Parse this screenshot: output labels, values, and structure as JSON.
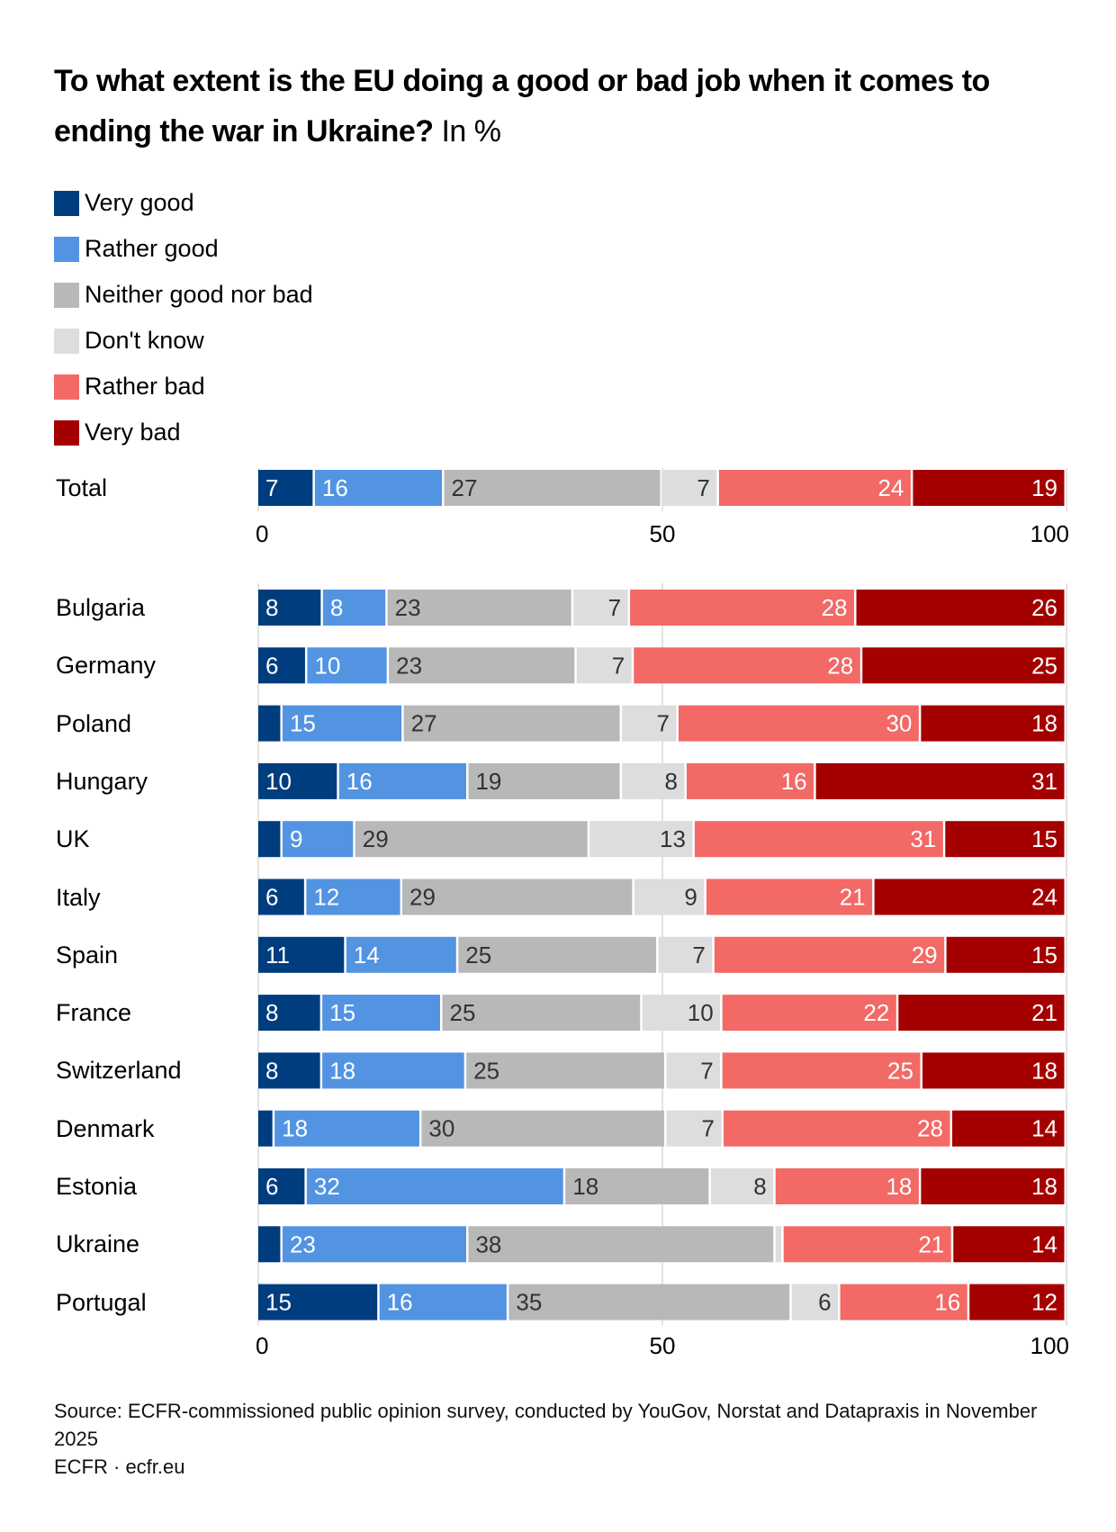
{
  "header": {
    "title": "To what extent is the EU doing a good or bad job when it comes to ending the war in Ukraine?",
    "unit": " In %"
  },
  "legend": [
    {
      "label": "Very good",
      "color": "#003d7f"
    },
    {
      "label": "Rather good",
      "color": "#5294e2"
    },
    {
      "label": "Neither good nor bad",
      "color": "#b8b8b8"
    },
    {
      "label": "Don't know",
      "color": "#dddddd"
    },
    {
      "label": "Rather bad",
      "color": "#f26966"
    },
    {
      "label": "Very bad",
      "color": "#a50000"
    }
  ],
  "footer": {
    "source": "Source: ECFR-commissioned public opinion survey, conducted by YouGov, Norstat and Datapraxis in November 2025",
    "credit": "ECFR · ecfr.eu"
  },
  "chart_data": {
    "type": "bar",
    "orientation": "horizontal-stacked",
    "title": "To what extent is the EU doing a good or bad job when it comes to ending the war in Ukraine? In %",
    "xlabel": "",
    "ylabel": "",
    "xlim": [
      0,
      100
    ],
    "xticks": [
      "0",
      "50",
      "100"
    ],
    "grid": true,
    "legend_position": "top-left",
    "series": [
      "Very good",
      "Rather good",
      "Neither good nor bad",
      "Don't know",
      "Rather bad",
      "Very bad"
    ],
    "label_colors": [
      "#ffffff",
      "#ffffff",
      "#333333",
      "#333333",
      "#ffffff",
      "#ffffff"
    ],
    "total": {
      "category": "Total",
      "values": [
        7,
        16,
        27,
        7,
        24,
        19
      ],
      "labels": [
        "7",
        "16",
        "27",
        "7",
        "24",
        "19"
      ]
    },
    "categories": [
      "Bulgaria",
      "Germany",
      "Poland",
      "Hungary",
      "UK",
      "Italy",
      "Spain",
      "France",
      "Switzerland",
      "Denmark",
      "Estonia",
      "Ukraine",
      "Portugal"
    ],
    "rows": [
      {
        "category": "Bulgaria",
        "values": [
          8,
          8,
          23,
          7,
          28,
          26
        ],
        "labels": [
          "8",
          "8",
          "23",
          "7",
          "28",
          "26"
        ]
      },
      {
        "category": "Germany",
        "values": [
          6,
          10,
          23,
          7,
          28,
          25
        ],
        "labels": [
          "6",
          "10",
          "23",
          "7",
          "28",
          "25"
        ]
      },
      {
        "category": "Poland",
        "values": [
          3,
          15,
          27,
          7,
          30,
          18
        ],
        "labels": [
          "",
          "15",
          "27",
          "7",
          "30",
          "18"
        ]
      },
      {
        "category": "Hungary",
        "values": [
          10,
          16,
          19,
          8,
          16,
          31
        ],
        "labels": [
          "10",
          "16",
          "19",
          "8",
          "16",
          "31"
        ]
      },
      {
        "category": "UK",
        "values": [
          3,
          9,
          29,
          13,
          31,
          15
        ],
        "labels": [
          "",
          "9",
          "29",
          "13",
          "31",
          "15"
        ]
      },
      {
        "category": "Italy",
        "values": [
          6,
          12,
          29,
          9,
          21,
          24
        ],
        "labels": [
          "6",
          "12",
          "29",
          "9",
          "21",
          "24"
        ]
      },
      {
        "category": "Spain",
        "values": [
          11,
          14,
          25,
          7,
          29,
          15
        ],
        "labels": [
          "11",
          "14",
          "25",
          "7",
          "29",
          "15"
        ]
      },
      {
        "category": "France",
        "values": [
          8,
          15,
          25,
          10,
          22,
          21
        ],
        "labels": [
          "8",
          "15",
          "25",
          "10",
          "22",
          "21"
        ]
      },
      {
        "category": "Switzerland",
        "values": [
          8,
          18,
          25,
          7,
          25,
          18
        ],
        "labels": [
          "8",
          "18",
          "25",
          "7",
          "25",
          "18"
        ]
      },
      {
        "category": "Denmark",
        "values": [
          2,
          18,
          30,
          7,
          28,
          14
        ],
        "labels": [
          "",
          "18",
          "30",
          "7",
          "28",
          "14"
        ]
      },
      {
        "category": "Estonia",
        "values": [
          6,
          32,
          18,
          8,
          18,
          18
        ],
        "labels": [
          "6",
          "32",
          "18",
          "8",
          "18",
          "18"
        ]
      },
      {
        "category": "Ukraine",
        "values": [
          3,
          23,
          38,
          1,
          21,
          14
        ],
        "labels": [
          "",
          "23",
          "38",
          "",
          "21",
          "14"
        ]
      },
      {
        "category": "Portugal",
        "values": [
          15,
          16,
          35,
          6,
          16,
          12
        ],
        "labels": [
          "15",
          "16",
          "35",
          "6",
          "16",
          "12"
        ]
      }
    ]
  }
}
